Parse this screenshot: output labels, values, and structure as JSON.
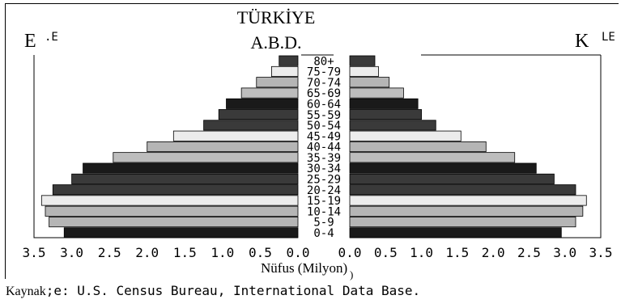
{
  "chart_data": {
    "type": "bar",
    "orientation": "horizontal-population-pyramid",
    "title_lines": [
      "TÜRKİYE",
      "A.B.D."
    ],
    "xlabel": "Nüfus (Milyon)",
    "categories": [
      "0-4",
      "5-9",
      "10-14",
      "15-19",
      "20-24",
      "25-29",
      "30-34",
      "35-39",
      "40-44",
      "45-49",
      "50-54",
      "55-59",
      "60-64",
      "65-69",
      "70-74",
      "75-79",
      "80+"
    ],
    "category_labels": [
      "0-4",
      "5-9",
      "10-14",
      "15-19",
      "20-24",
      "25-29",
      "30-34",
      "35-39",
      "40-44",
      "45-49",
      "50-54",
      "55-59",
      "60-64",
      "65-69",
      "70-74",
      "75-79",
      "80+"
    ],
    "left_side_label": "E",
    "left_side_sub": ".E",
    "right_side_label": "K",
    "right_side_sub": "LE",
    "series": [
      {
        "side": "left",
        "values": [
          3.1,
          3.3,
          3.35,
          3.4,
          3.25,
          3.0,
          2.85,
          2.45,
          2.0,
          1.65,
          1.25,
          1.05,
          0.95,
          0.75,
          0.55,
          0.35,
          0.25
        ]
      },
      {
        "side": "right",
        "values": [
          2.95,
          3.15,
          3.25,
          3.3,
          3.15,
          2.85,
          2.6,
          2.3,
          1.9,
          1.55,
          1.2,
          1.0,
          0.95,
          0.75,
          0.55,
          0.4,
          0.35
        ]
      }
    ],
    "xlim": [
      0,
      3.5
    ],
    "xticks_left": [
      "3.5",
      "3.0",
      "2.5",
      "2.0",
      "1.5",
      "1.0",
      "0.5",
      "0.0"
    ],
    "xticks_right": [
      "0.0",
      "0.5",
      "1.0",
      "1.5",
      "2.0",
      "2.5",
      "3.0",
      "3.5"
    ],
    "bar_colors": [
      "#1a1a1a",
      "#b5b5b5",
      "#b5b5b5",
      "#ececec",
      "#3a3a3a",
      "#3a3a3a",
      "#1a1a1a",
      "#bdbdbd",
      "#b5b5b5",
      "#ececec",
      "#3a3a3a",
      "#3a3a3a",
      "#1a1a1a",
      "#bdbdbd",
      "#b5b5b5",
      "#ececec",
      "#3a3a3a"
    ],
    "grid": false
  },
  "source": {
    "prefix": "Kaynak",
    "text": ";e: U.S. Census Bureau, International Data Base."
  },
  "extra_mark": ")"
}
